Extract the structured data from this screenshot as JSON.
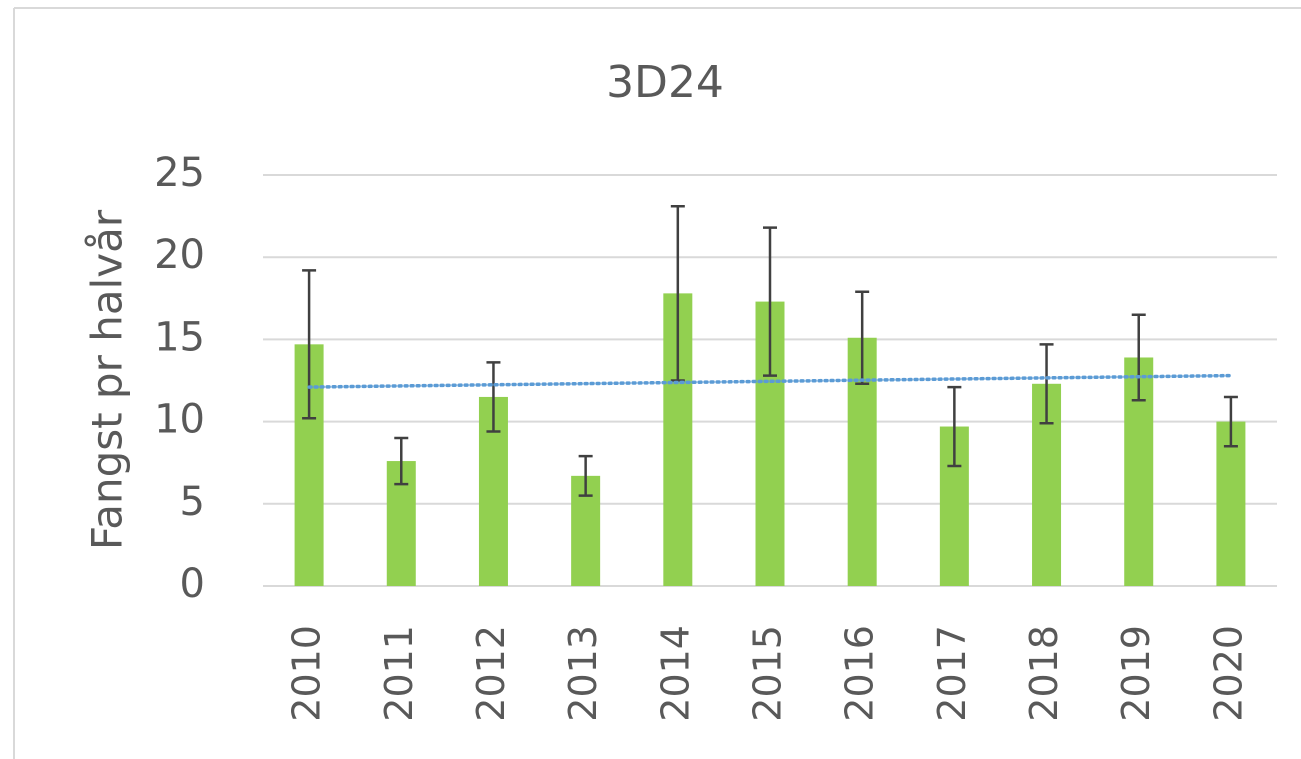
{
  "chart_data": {
    "type": "bar",
    "title": "3D24",
    "y_label": "Fangst pr halvår",
    "categories": [
      "2010",
      "2011",
      "2012",
      "2013",
      "2014",
      "2015",
      "2016",
      "2017",
      "2018",
      "2019",
      "2020"
    ],
    "values": [
      14.7,
      7.6,
      11.5,
      6.7,
      17.8,
      17.3,
      15.1,
      9.7,
      12.3,
      13.9,
      10.0
    ],
    "errors": [
      4.5,
      1.4,
      2.1,
      1.2,
      5.3,
      4.5,
      2.8,
      2.4,
      2.4,
      2.6,
      1.5
    ],
    "color": "#92d050",
    "error_color": "#404040",
    "trendline": {
      "values": [
        12.1,
        12.8
      ],
      "color": "#5b9bd5"
    },
    "ylim": [
      0,
      25
    ],
    "yticks": [
      0,
      5,
      10,
      15,
      20,
      25
    ],
    "grid": true
  }
}
